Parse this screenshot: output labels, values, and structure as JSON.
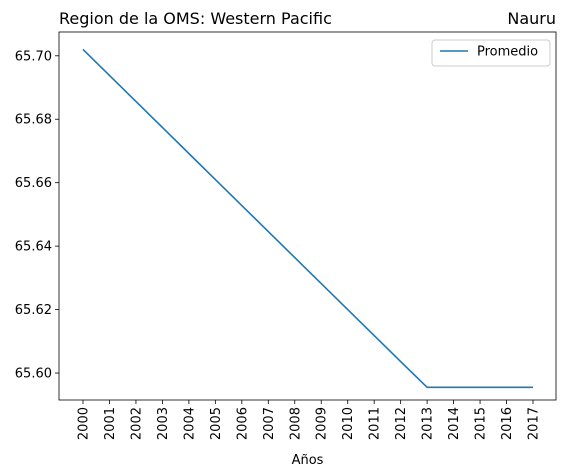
{
  "chart_data": {
    "type": "line",
    "title_left": "Region de la OMS: Western Pacific",
    "title_right": "Nauru",
    "xlabel": "Años",
    "ylabel": "",
    "categories": [
      "2000",
      "2001",
      "2002",
      "2003",
      "2004",
      "2005",
      "2006",
      "2007",
      "2008",
      "2009",
      "2010",
      "2011",
      "2012",
      "2013",
      "2014",
      "2015",
      "2016",
      "2017"
    ],
    "yticks": [
      "65.60",
      "65.62",
      "65.64",
      "65.66",
      "65.68",
      "65.70"
    ],
    "ylim": [
      65.5915,
      65.7075
    ],
    "series": [
      {
        "name": "Promedio",
        "color": "#1f77b4",
        "values": [
          65.702,
          65.6938,
          65.6856,
          65.6774,
          65.6692,
          65.661,
          65.6528,
          65.6446,
          65.6364,
          65.6282,
          65.62,
          65.6118,
          65.6036,
          65.5955,
          65.5955,
          65.5955,
          65.5955,
          65.5955
        ]
      }
    ],
    "legend_position": "top-right",
    "grid": false
  }
}
